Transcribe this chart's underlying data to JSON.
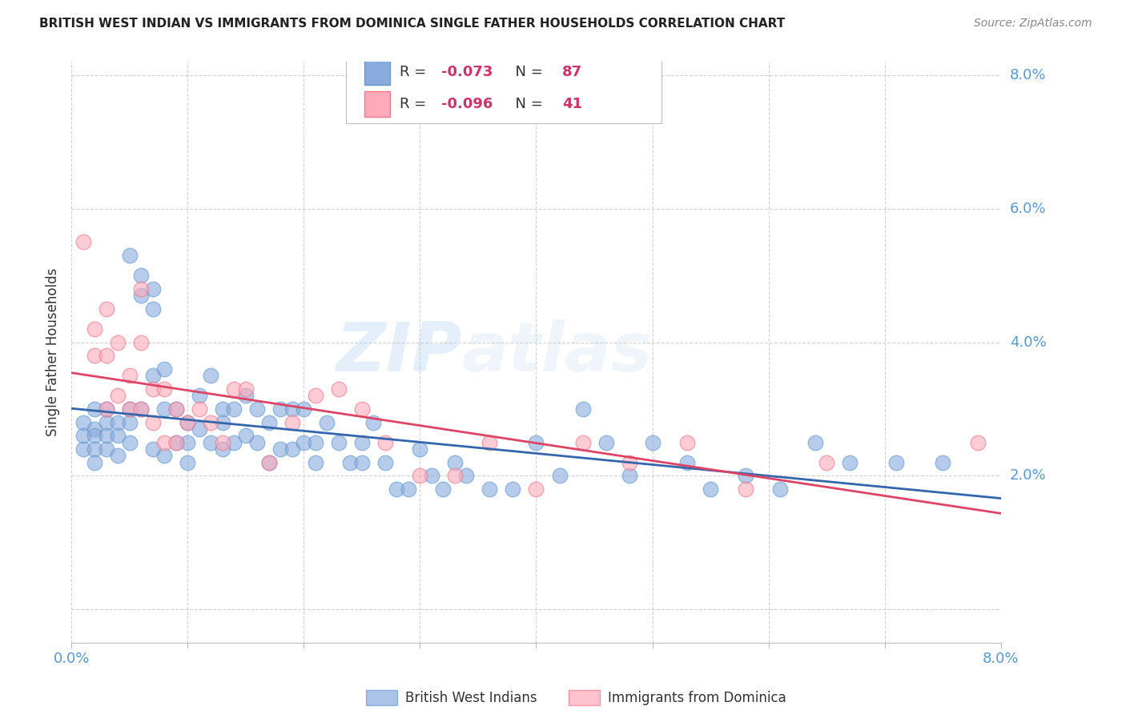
{
  "title": "BRITISH WEST INDIAN VS IMMIGRANTS FROM DOMINICA SINGLE FATHER HOUSEHOLDS CORRELATION CHART",
  "source": "Source: ZipAtlas.com",
  "ylabel": "Single Father Households",
  "xmin": 0.0,
  "xmax": 0.08,
  "ymin": -0.005,
  "ymax": 0.082,
  "yticks": [
    0.0,
    0.02,
    0.04,
    0.06,
    0.08
  ],
  "ytick_labels": [
    "",
    "2.0%",
    "4.0%",
    "6.0%",
    "8.0%"
  ],
  "xticks": [
    0.0,
    0.01,
    0.02,
    0.03,
    0.04,
    0.05,
    0.06,
    0.07,
    0.08
  ],
  "series1_label": "British West Indians",
  "series1_R": "-0.073",
  "series1_N": "87",
  "series1_color": "#88AADD",
  "series1_edge_color": "#6699CC",
  "series1_line_color": "#3366AA",
  "series2_label": "Immigrants from Dominica",
  "series2_R": "-0.096",
  "series2_N": "41",
  "series2_color": "#FFAABB",
  "series2_edge_color": "#EE7788",
  "series2_line_color": "#DD4466",
  "background_color": "#FFFFFF",
  "grid_color": "#CCCCCC",
  "axis_color": "#BBBBBB",
  "title_color": "#222222",
  "source_color": "#888888",
  "tick_label_color": "#5599DD",
  "legend_text_color": "#333333",
  "legend_r_color": "#CC4477",
  "watermark_zip": "ZIP",
  "watermark_atlas": "atlas",
  "series1_x": [
    0.001,
    0.001,
    0.001,
    0.002,
    0.002,
    0.002,
    0.002,
    0.002,
    0.003,
    0.003,
    0.003,
    0.003,
    0.004,
    0.004,
    0.004,
    0.005,
    0.005,
    0.005,
    0.005,
    0.006,
    0.006,
    0.006,
    0.007,
    0.007,
    0.007,
    0.007,
    0.008,
    0.008,
    0.008,
    0.009,
    0.009,
    0.01,
    0.01,
    0.01,
    0.011,
    0.011,
    0.012,
    0.012,
    0.013,
    0.013,
    0.013,
    0.014,
    0.014,
    0.015,
    0.015,
    0.016,
    0.016,
    0.017,
    0.017,
    0.018,
    0.018,
    0.019,
    0.019,
    0.02,
    0.02,
    0.021,
    0.021,
    0.022,
    0.023,
    0.024,
    0.025,
    0.025,
    0.026,
    0.027,
    0.028,
    0.029,
    0.03,
    0.031,
    0.032,
    0.033,
    0.034,
    0.036,
    0.038,
    0.04,
    0.042,
    0.044,
    0.046,
    0.048,
    0.05,
    0.053,
    0.055,
    0.058,
    0.061,
    0.064,
    0.067,
    0.071,
    0.075
  ],
  "series1_y": [
    0.028,
    0.026,
    0.024,
    0.03,
    0.027,
    0.026,
    0.024,
    0.022,
    0.03,
    0.028,
    0.026,
    0.024,
    0.028,
    0.026,
    0.023,
    0.053,
    0.03,
    0.028,
    0.025,
    0.05,
    0.047,
    0.03,
    0.048,
    0.045,
    0.035,
    0.024,
    0.036,
    0.03,
    0.023,
    0.03,
    0.025,
    0.028,
    0.025,
    0.022,
    0.032,
    0.027,
    0.035,
    0.025,
    0.03,
    0.028,
    0.024,
    0.03,
    0.025,
    0.032,
    0.026,
    0.03,
    0.025,
    0.028,
    0.022,
    0.03,
    0.024,
    0.03,
    0.024,
    0.03,
    0.025,
    0.025,
    0.022,
    0.028,
    0.025,
    0.022,
    0.025,
    0.022,
    0.028,
    0.022,
    0.018,
    0.018,
    0.024,
    0.02,
    0.018,
    0.022,
    0.02,
    0.018,
    0.018,
    0.025,
    0.02,
    0.03,
    0.025,
    0.02,
    0.025,
    0.022,
    0.018,
    0.02,
    0.018,
    0.025,
    0.022,
    0.022,
    0.022
  ],
  "series2_x": [
    0.001,
    0.002,
    0.002,
    0.003,
    0.003,
    0.003,
    0.004,
    0.004,
    0.005,
    0.005,
    0.006,
    0.006,
    0.006,
    0.007,
    0.007,
    0.008,
    0.008,
    0.009,
    0.009,
    0.01,
    0.011,
    0.012,
    0.013,
    0.014,
    0.015,
    0.017,
    0.019,
    0.021,
    0.023,
    0.025,
    0.027,
    0.03,
    0.033,
    0.036,
    0.04,
    0.044,
    0.048,
    0.053,
    0.058,
    0.065,
    0.078
  ],
  "series2_y": [
    0.055,
    0.042,
    0.038,
    0.045,
    0.038,
    0.03,
    0.04,
    0.032,
    0.035,
    0.03,
    0.048,
    0.04,
    0.03,
    0.033,
    0.028,
    0.033,
    0.025,
    0.03,
    0.025,
    0.028,
    0.03,
    0.028,
    0.025,
    0.033,
    0.033,
    0.022,
    0.028,
    0.032,
    0.033,
    0.03,
    0.025,
    0.02,
    0.02,
    0.025,
    0.018,
    0.025,
    0.022,
    0.025,
    0.018,
    0.022,
    0.025
  ]
}
